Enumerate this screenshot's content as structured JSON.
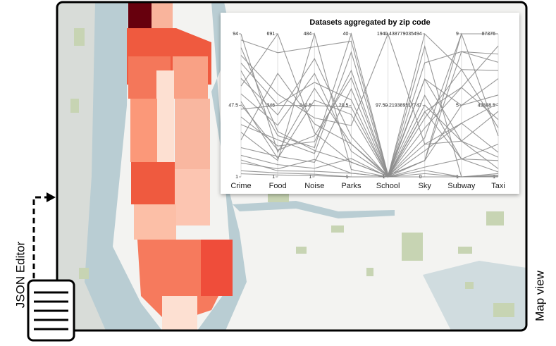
{
  "labels": {
    "json_editor": "JSON Editor",
    "map_view": "Map view"
  },
  "chart_data": {
    "type": "parallel",
    "title": "Datasets aggregated by zip code",
    "color": "#8c8c8c",
    "dimensions": [
      {
        "name": "Crime",
        "lim": [
          1,
          94
        ],
        "ticks": [
          1,
          47.5,
          94
        ]
      },
      {
        "name": "Food",
        "lim": [
          1,
          691
        ],
        "ticks": [
          1,
          346,
          691
        ]
      },
      {
        "name": "Noise",
        "lim": [
          1,
          484
        ],
        "ticks": [
          1,
          242.5,
          484
        ]
      },
      {
        "name": "Parks",
        "lim": [
          1,
          40
        ],
        "ticks": [
          1,
          20.5,
          40
        ]
      },
      {
        "name": "School",
        "lim": [
          1,
          194
        ],
        "ticks": [
          1,
          97.5,
          194
        ]
      },
      {
        "name": "Sky",
        "lim": [
          0,
          0.438779035494
        ],
        "ticks": [
          0,
          0.219389517747,
          0.438779035494
        ]
      },
      {
        "name": "Subway",
        "lim": [
          1,
          9
        ],
        "ticks": [
          1,
          5,
          9
        ]
      },
      {
        "name": "Taxi",
        "lim": [
          1,
          87376
        ],
        "ticks": [
          1,
          43688.5,
          87376
        ]
      }
    ],
    "lines": [
      [
        94,
        120,
        300,
        10,
        3,
        0.05,
        9,
        87376
      ],
      [
        60,
        691,
        150,
        5,
        2,
        0.1,
        3,
        40000
      ],
      [
        30,
        80,
        484,
        3,
        1,
        0.2,
        2,
        20000
      ],
      [
        70,
        200,
        100,
        40,
        4,
        0.3,
        5,
        60000
      ],
      [
        45,
        346,
        242,
        20,
        2,
        0.438779035494,
        7,
        30000
      ],
      [
        10,
        40,
        60,
        2,
        1,
        0.02,
        1,
        2000
      ],
      [
        80,
        400,
        200,
        15,
        194,
        0.1,
        4,
        15000
      ],
      [
        20,
        100,
        50,
        25,
        1,
        0.35,
        8,
        70000
      ],
      [
        55,
        250,
        350,
        8,
        2,
        0.15,
        6,
        80000
      ],
      [
        5,
        20,
        10,
        1,
        1,
        0.01,
        1,
        500
      ],
      [
        40,
        150,
        120,
        30,
        3,
        0.25,
        2,
        10000
      ],
      [
        65,
        300,
        400,
        12,
        1,
        0.05,
        5,
        50000
      ],
      [
        15,
        60,
        30,
        6,
        1,
        0.3,
        3,
        5000
      ],
      [
        35,
        180,
        80,
        35,
        2,
        0.12,
        9,
        25000
      ],
      [
        50,
        90,
        260,
        18,
        1,
        0.4,
        1,
        1000
      ],
      [
        25,
        500,
        180,
        10,
        1,
        0.08,
        4,
        45000
      ],
      [
        85,
        220,
        90,
        5,
        2,
        0.2,
        6,
        35000
      ],
      [
        12,
        30,
        20,
        2,
        1,
        0.03,
        2,
        3000
      ],
      [
        75,
        350,
        320,
        22,
        1,
        0.18,
        7,
        65000
      ],
      [
        3,
        10,
        5,
        1,
        1,
        0,
        1,
        1
      ],
      [
        48,
        130,
        140,
        28,
        2,
        0.22,
        3,
        12000
      ],
      [
        90,
        600,
        440,
        38,
        3,
        0.05,
        8,
        75000
      ]
    ]
  }
}
